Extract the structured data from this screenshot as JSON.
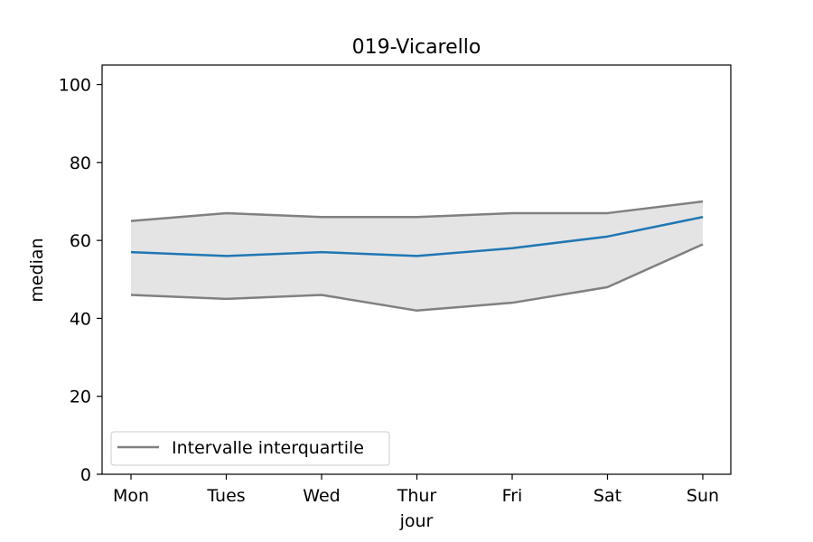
{
  "chart_data": {
    "type": "line",
    "title": "019-Vicarello",
    "xlabel": "jour",
    "ylabel": "median",
    "categories": [
      "Mon",
      "Tues",
      "Wed",
      "Thur",
      "Fri",
      "Sat",
      "Sun"
    ],
    "ylim": [
      0,
      105
    ],
    "yticks": [
      0,
      20,
      40,
      60,
      80,
      100
    ],
    "median": [
      57,
      56,
      57,
      56,
      58,
      61,
      66
    ],
    "q3": [
      65,
      67,
      66,
      66,
      67,
      67,
      70
    ],
    "q1": [
      46,
      45,
      46,
      42,
      44,
      48,
      59
    ],
    "legend": {
      "label": "Intervalle interquartile",
      "location": "lower-left"
    },
    "colors": {
      "median": "#1f77b4",
      "iqr_line": "#808080",
      "iqr_fill": "#e4e4e4"
    },
    "grid": false
  }
}
